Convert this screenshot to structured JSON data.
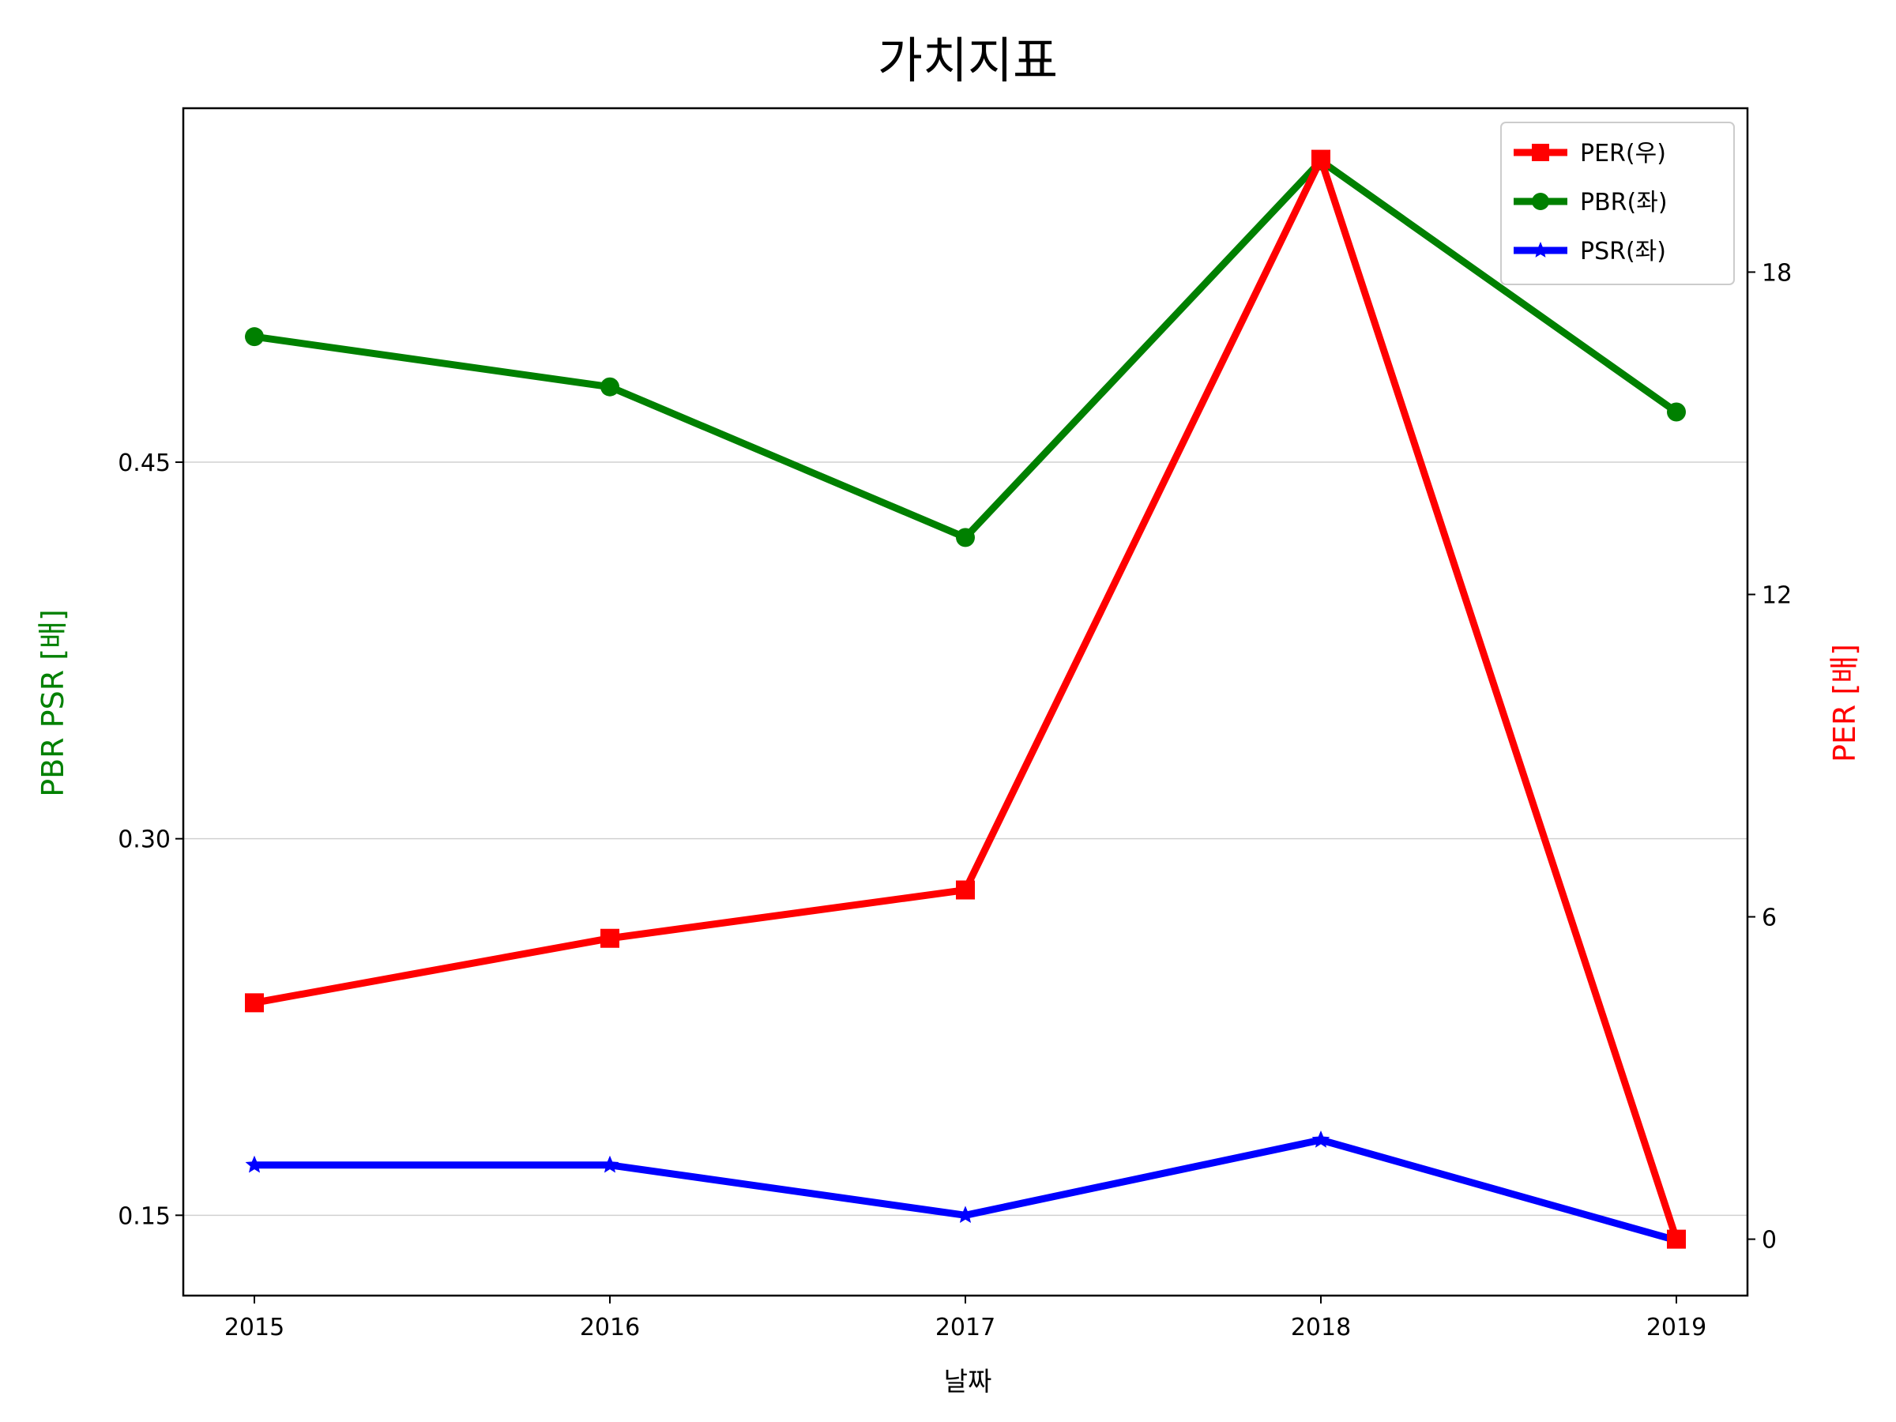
{
  "chart_data": {
    "type": "line",
    "title": "가치지표",
    "xlabel": "날짜",
    "ylabel_left": "PBR PSR [배]",
    "ylabel_right": "PER [배]",
    "categories": [
      "2015",
      "2016",
      "2017",
      "2018",
      "2019"
    ],
    "ylim_left": [
      0.118,
      0.591
    ],
    "yticks_left": [
      "0.15",
      "0.30",
      "0.45"
    ],
    "ylim_right": [
      -1.05,
      21.05
    ],
    "yticks_right": [
      "0",
      "6",
      "12",
      "18"
    ],
    "grid": "horizontal (left axis)",
    "legend_position": "top-right",
    "series": [
      {
        "name": "PER(우)",
        "axis": "right",
        "color": "#ff0000",
        "marker": "square",
        "values": [
          4.4,
          5.6,
          6.5,
          20.1,
          0.0
        ]
      },
      {
        "name": "PBR(좌)",
        "axis": "left",
        "color": "#008000",
        "marker": "circle",
        "values": [
          0.5,
          0.48,
          0.42,
          0.57,
          0.47
        ]
      },
      {
        "name": "PSR(좌)",
        "axis": "left",
        "color": "#0000ff",
        "marker": "star",
        "values": [
          0.17,
          0.17,
          0.15,
          0.18,
          0.14
        ]
      }
    ]
  }
}
